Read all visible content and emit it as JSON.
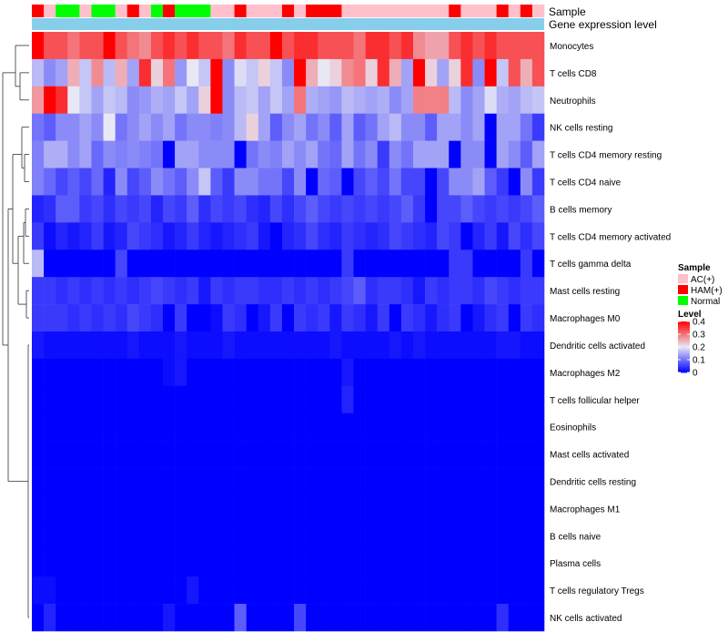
{
  "chart_data": {
    "type": "heatmap",
    "annotation_labels": {
      "sample": "Sample",
      "gene_expression": "Gene expression level"
    },
    "sample_groups": [
      "HAM(+)",
      "AC(+)",
      "Normal",
      "Normal",
      "AC(+)",
      "Normal",
      "Normal",
      "AC(+)",
      "HAM(+)",
      "AC(+)",
      "Normal",
      "HAM(+)",
      "Normal",
      "Normal",
      "Normal",
      "AC(+)",
      "AC(+)",
      "HAM(+)",
      "AC(+)",
      "AC(+)",
      "AC(+)",
      "HAM(+)",
      "AC(+)",
      "HAM(+)",
      "HAM(+)",
      "HAM(+)",
      "AC(+)",
      "AC(+)",
      "AC(+)",
      "AC(+)",
      "AC(+)",
      "AC(+)",
      "AC(+)",
      "AC(+)",
      "AC(+)",
      "HAM(+)",
      "AC(+)",
      "AC(+)",
      "AC(+)",
      "HAM(+)",
      "AC(+)",
      "HAM(+)",
      "AC(+)"
    ],
    "rows": [
      "Monocytes",
      "T cells CD8",
      "Neutrophils",
      "NK cells resting",
      "T cells CD4 memory resting",
      "T cells CD4 naive",
      "B cells memory",
      "T cells CD4 memory activated",
      "T cells gamma delta",
      "Mast cells resting",
      "Macrophages M0",
      "Dendritic cells activated",
      "Macrophages M2",
      "T cells follicular helper",
      "Eosinophils",
      "Mast cells activated",
      "Dendritic cells resting",
      "Macrophages M1",
      "B cells naive",
      "Plasma cells",
      "T cells regulatory  Tregs",
      "NK cells activated"
    ],
    "values": [
      [
        0.4,
        0.33,
        0.33,
        0.3,
        0.33,
        0.33,
        0.4,
        0.33,
        0.3,
        0.28,
        0.33,
        0.36,
        0.33,
        0.36,
        0.33,
        0.33,
        0.3,
        0.36,
        0.33,
        0.33,
        0.4,
        0.33,
        0.36,
        0.36,
        0.33,
        0.33,
        0.33,
        0.3,
        0.36,
        0.36,
        0.33,
        0.36,
        0.28,
        0.26,
        0.26,
        0.33,
        0.36,
        0.33,
        0.36,
        0.33,
        0.33,
        0.33,
        0.33
      ],
      [
        0.16,
        0.12,
        0.14,
        0.25,
        0.17,
        0.28,
        0.16,
        0.25,
        0.14,
        0.36,
        0.22,
        0.3,
        0.13,
        0.2,
        0.17,
        0.4,
        0.12,
        0.19,
        0.17,
        0.22,
        0.17,
        0.12,
        0.4,
        0.25,
        0.2,
        0.22,
        0.28,
        0.3,
        0.22,
        0.36,
        0.25,
        0.14,
        0.4,
        0.22,
        0.14,
        0.22,
        0.36,
        0.12,
        0.4,
        0.17,
        0.33,
        0.25,
        0.33
      ],
      [
        0.27,
        0.4,
        0.36,
        0.2,
        0.17,
        0.14,
        0.17,
        0.16,
        0.12,
        0.13,
        0.15,
        0.14,
        0.17,
        0.14,
        0.22,
        0.4,
        0.12,
        0.16,
        0.17,
        0.14,
        0.17,
        0.14,
        0.3,
        0.15,
        0.14,
        0.13,
        0.16,
        0.15,
        0.14,
        0.15,
        0.12,
        0.14,
        0.29,
        0.29,
        0.29,
        0.16,
        0.12,
        0.14,
        0.19,
        0.15,
        0.14,
        0.16,
        0.17
      ],
      [
        0.1,
        0.08,
        0.12,
        0.12,
        0.14,
        0.12,
        0.2,
        0.1,
        0.12,
        0.14,
        0.12,
        0.14,
        0.1,
        0.12,
        0.12,
        0.11,
        0.12,
        0.16,
        0.22,
        0.14,
        0.08,
        0.12,
        0.14,
        0.1,
        0.12,
        0.08,
        0.14,
        0.08,
        0.1,
        0.14,
        0.16,
        0.12,
        0.12,
        0.08,
        0.14,
        0.14,
        0.12,
        0.14,
        0.0,
        0.14,
        0.14,
        0.1,
        0.05
      ],
      [
        0.11,
        0.15,
        0.15,
        0.12,
        0.14,
        0.09,
        0.12,
        0.11,
        0.12,
        0.11,
        0.1,
        0.0,
        0.14,
        0.14,
        0.12,
        0.12,
        0.12,
        0.0,
        0.1,
        0.12,
        0.11,
        0.14,
        0.12,
        0.14,
        0.1,
        0.09,
        0.14,
        0.1,
        0.12,
        0.05,
        0.12,
        0.1,
        0.14,
        0.14,
        0.14,
        0.0,
        0.12,
        0.12,
        0.0,
        0.14,
        0.12,
        0.08,
        0.14
      ],
      [
        0.11,
        0.09,
        0.06,
        0.08,
        0.06,
        0.09,
        0.03,
        0.12,
        0.06,
        0.08,
        0.12,
        0.1,
        0.08,
        0.12,
        0.17,
        0.08,
        0.05,
        0.12,
        0.12,
        0.1,
        0.1,
        0.06,
        0.12,
        0.0,
        0.09,
        0.08,
        0.0,
        0.06,
        0.08,
        0.06,
        0.1,
        0.06,
        0.06,
        0.0,
        0.06,
        0.12,
        0.12,
        0.14,
        0.08,
        0.05,
        0.0,
        0.12,
        0.05
      ],
      [
        0.03,
        0.04,
        0.08,
        0.08,
        0.05,
        0.06,
        0.04,
        0.06,
        0.05,
        0.06,
        0.03,
        0.06,
        0.05,
        0.08,
        0.04,
        0.06,
        0.05,
        0.06,
        0.04,
        0.03,
        0.06,
        0.04,
        0.06,
        0.08,
        0.06,
        0.05,
        0.06,
        0.05,
        0.06,
        0.05,
        0.06,
        0.08,
        0.05,
        0.0,
        0.06,
        0.06,
        0.08,
        0.06,
        0.05,
        0.06,
        0.05,
        0.06,
        0.08
      ],
      [
        0.05,
        0.01,
        0.03,
        0.02,
        0.03,
        0.05,
        0.02,
        0.03,
        0.06,
        0.05,
        0.04,
        0.02,
        0.03,
        0.05,
        0.03,
        0.02,
        0.03,
        0.04,
        0.05,
        0.02,
        0.0,
        0.03,
        0.04,
        0.06,
        0.04,
        0.03,
        0.05,
        0.04,
        0.03,
        0.04,
        0.06,
        0.05,
        0.04,
        0.03,
        0.06,
        0.05,
        0.0,
        0.03,
        0.05,
        0.02,
        0.06,
        0.04,
        0.06
      ],
      [
        0.16,
        0.0,
        0.0,
        0.0,
        0.0,
        0.0,
        0.0,
        0.06,
        0.0,
        0.0,
        0.0,
        0.0,
        0.0,
        0.0,
        0.0,
        0.0,
        0.0,
        0.0,
        0.0,
        0.0,
        0.0,
        0.0,
        0.0,
        0.0,
        0.0,
        0.0,
        0.05,
        0.0,
        0.0,
        0.0,
        0.0,
        0.0,
        0.0,
        0.0,
        0.0,
        0.05,
        0.05,
        0.0,
        0.0,
        0.0,
        0.0,
        0.05,
        0.0
      ],
      [
        0.05,
        0.05,
        0.04,
        0.05,
        0.04,
        0.05,
        0.04,
        0.05,
        0.04,
        0.05,
        0.06,
        0.05,
        0.04,
        0.05,
        0.02,
        0.05,
        0.04,
        0.05,
        0.05,
        0.04,
        0.04,
        0.05,
        0.04,
        0.05,
        0.04,
        0.05,
        0.06,
        0.08,
        0.04,
        0.05,
        0.05,
        0.04,
        0.02,
        0.05,
        0.04,
        0.05,
        0.05,
        0.04,
        0.06,
        0.05,
        0.04,
        0.05,
        0.05
      ],
      [
        0.05,
        0.05,
        0.05,
        0.04,
        0.05,
        0.04,
        0.05,
        0.04,
        0.06,
        0.05,
        0.04,
        0.0,
        0.05,
        0.0,
        0.0,
        0.01,
        0.05,
        0.04,
        0.0,
        0.02,
        0.05,
        0.0,
        0.05,
        0.04,
        0.05,
        0.02,
        0.05,
        0.04,
        0.02,
        0.05,
        0.0,
        0.05,
        0.04,
        0.02,
        0.04,
        0.05,
        0.0,
        0.02,
        0.04,
        0.05,
        0.0,
        0.05,
        0.04
      ],
      [
        0.02,
        0.01,
        0.01,
        0.01,
        0.01,
        0.01,
        0.01,
        0.01,
        0.02,
        0.01,
        0.01,
        0.01,
        0.02,
        0.01,
        0.01,
        0.01,
        0.02,
        0.01,
        0.01,
        0.01,
        0.01,
        0.01,
        0.01,
        0.01,
        0.01,
        0.02,
        0.01,
        0.01,
        0.01,
        0.01,
        0.02,
        0.01,
        0.02,
        0.01,
        0.01,
        0.01,
        0.01,
        0.01,
        0.01,
        0.02,
        0.02,
        0.01,
        0.01
      ],
      [
        0.0,
        0.0,
        0.0,
        0.0,
        0.0,
        0.0,
        0.0,
        0.0,
        0.0,
        0.0,
        0.0,
        0.01,
        0.02,
        0.0,
        0.0,
        0.0,
        0.0,
        0.0,
        0.0,
        0.0,
        0.0,
        0.0,
        0.0,
        0.0,
        0.0,
        0.0,
        0.02,
        0.0,
        0.0,
        0.0,
        0.0,
        0.0,
        0.0,
        0.0,
        0.0,
        0.0,
        0.0,
        0.0,
        0.0,
        0.0,
        0.0,
        0.0,
        0.0
      ],
      [
        0.0,
        0.0,
        0.0,
        0.0,
        0.0,
        0.0,
        0.0,
        0.0,
        0.0,
        0.0,
        0.0,
        0.0,
        0.0,
        0.0,
        0.0,
        0.0,
        0.0,
        0.0,
        0.0,
        0.0,
        0.0,
        0.0,
        0.0,
        0.0,
        0.0,
        0.0,
        0.03,
        0.0,
        0.0,
        0.0,
        0.0,
        0.0,
        0.0,
        0.0,
        0.0,
        0.0,
        0.0,
        0.0,
        0.0,
        0.0,
        0.0,
        0.0,
        0.0
      ],
      [
        0.0,
        0.0,
        0.0,
        0.0,
        0.0,
        0.0,
        0.0,
        0.0,
        0.0,
        0.0,
        0.0,
        0.0,
        0.0,
        0.0,
        0.0,
        0.0,
        0.0,
        0.0,
        0.0,
        0.0,
        0.0,
        0.0,
        0.0,
        0.0,
        0.0,
        0.0,
        0.0,
        0.0,
        0.0,
        0.0,
        0.0,
        0.0,
        0.0,
        0.0,
        0.0,
        0.0,
        0.0,
        0.0,
        0.0,
        0.0,
        0.0,
        0.0,
        0.0
      ],
      [
        0.0,
        0.0,
        0.0,
        0.0,
        0.0,
        0.0,
        0.0,
        0.0,
        0.0,
        0.0,
        0.0,
        0.0,
        0.0,
        0.0,
        0.0,
        0.0,
        0.0,
        0.0,
        0.0,
        0.0,
        0.0,
        0.0,
        0.0,
        0.0,
        0.0,
        0.0,
        0.0,
        0.0,
        0.0,
        0.0,
        0.0,
        0.0,
        0.0,
        0.0,
        0.0,
        0.0,
        0.0,
        0.0,
        0.0,
        0.0,
        0.0,
        0.0,
        0.0
      ],
      [
        0.0,
        0.0,
        0.0,
        0.0,
        0.0,
        0.0,
        0.0,
        0.0,
        0.0,
        0.0,
        0.0,
        0.0,
        0.0,
        0.0,
        0.0,
        0.0,
        0.0,
        0.0,
        0.0,
        0.0,
        0.0,
        0.0,
        0.0,
        0.0,
        0.0,
        0.0,
        0.0,
        0.0,
        0.0,
        0.0,
        0.0,
        0.0,
        0.0,
        0.0,
        0.0,
        0.0,
        0.0,
        0.0,
        0.0,
        0.0,
        0.0,
        0.0,
        0.0
      ],
      [
        0.0,
        0.0,
        0.0,
        0.0,
        0.0,
        0.0,
        0.0,
        0.0,
        0.0,
        0.0,
        0.0,
        0.0,
        0.0,
        0.0,
        0.0,
        0.0,
        0.0,
        0.0,
        0.0,
        0.0,
        0.0,
        0.0,
        0.0,
        0.0,
        0.0,
        0.0,
        0.0,
        0.0,
        0.0,
        0.0,
        0.0,
        0.0,
        0.0,
        0.0,
        0.0,
        0.0,
        0.0,
        0.0,
        0.0,
        0.0,
        0.0,
        0.0,
        0.0
      ],
      [
        0.0,
        0.0,
        0.0,
        0.0,
        0.0,
        0.0,
        0.0,
        0.0,
        0.0,
        0.0,
        0.0,
        0.0,
        0.0,
        0.0,
        0.0,
        0.0,
        0.0,
        0.0,
        0.0,
        0.0,
        0.0,
        0.0,
        0.0,
        0.0,
        0.0,
        0.0,
        0.0,
        0.0,
        0.0,
        0.0,
        0.0,
        0.0,
        0.0,
        0.0,
        0.0,
        0.0,
        0.0,
        0.0,
        0.0,
        0.0,
        0.0,
        0.0,
        0.0
      ],
      [
        0.0,
        0.0,
        0.0,
        0.0,
        0.0,
        0.0,
        0.0,
        0.0,
        0.0,
        0.0,
        0.0,
        0.0,
        0.0,
        0.0,
        0.0,
        0.0,
        0.0,
        0.0,
        0.0,
        0.0,
        0.0,
        0.0,
        0.0,
        0.0,
        0.0,
        0.0,
        0.0,
        0.0,
        0.0,
        0.0,
        0.0,
        0.0,
        0.0,
        0.0,
        0.0,
        0.0,
        0.0,
        0.0,
        0.0,
        0.0,
        0.0,
        0.0,
        0.0
      ],
      [
        0.01,
        0.01,
        0.0,
        0.0,
        0.0,
        0.0,
        0.0,
        0.0,
        0.0,
        0.0,
        0.0,
        0.0,
        0.0,
        0.02,
        0.0,
        0.0,
        0.0,
        0.0,
        0.0,
        0.0,
        0.0,
        0.0,
        0.0,
        0.0,
        0.0,
        0.0,
        0.0,
        0.0,
        0.0,
        0.0,
        0.0,
        0.0,
        0.0,
        0.0,
        0.0,
        0.0,
        0.0,
        0.0,
        0.0,
        0.0,
        0.0,
        0.0,
        0.0
      ],
      [
        0.0,
        0.03,
        0.0,
        0.0,
        0.0,
        0.0,
        0.0,
        0.0,
        0.0,
        0.0,
        0.0,
        0.02,
        0.0,
        0.0,
        0.0,
        0.0,
        0.0,
        0.08,
        0.0,
        0.0,
        0.0,
        0.0,
        0.06,
        0.0,
        0.0,
        0.0,
        0.0,
        0.0,
        0.0,
        0.0,
        0.0,
        0.0,
        0.0,
        0.0,
        0.0,
        0.0,
        0.0,
        0.0,
        0.0,
        0.04,
        0.0,
        0.0,
        0.0
      ]
    ],
    "color_scale": {
      "min": 0,
      "max": 0.4,
      "low_color": "#0000ff",
      "mid_color": "#e8e8f4",
      "high_color": "#ff0000"
    },
    "gene_expression_color": "#87ceeb",
    "legend": {
      "sample_title": "Sample",
      "sample_items": [
        {
          "label": "AC(+)",
          "color": "#ffc0cb"
        },
        {
          "label": "HAM(+)",
          "color": "#ff0000"
        },
        {
          "label": "Normal",
          "color": "#00ff00"
        }
      ],
      "level_title": "Level",
      "level_ticks": [
        {
          "label": "0.4",
          "value": 0.4
        },
        {
          "label": "0.3",
          "value": 0.3
        },
        {
          "label": "0.2",
          "value": 0.2
        },
        {
          "label": "0.1",
          "value": 0.1
        },
        {
          "label": "0",
          "value": 0.0
        }
      ]
    }
  }
}
